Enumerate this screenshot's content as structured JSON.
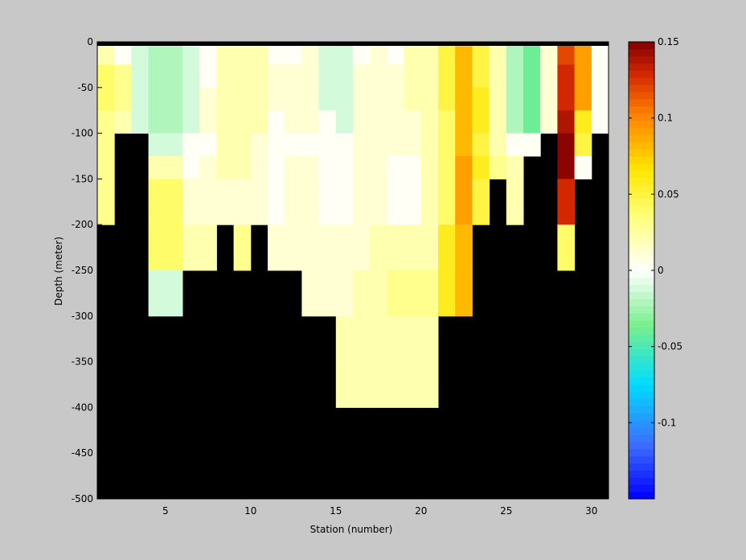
{
  "chart_data": {
    "type": "heatmap",
    "xlabel": "Station (number)",
    "ylabel": "Depth (meter)",
    "xlim": [
      1,
      31
    ],
    "ylim": [
      -500,
      0
    ],
    "xticks": [
      5,
      10,
      15,
      20,
      25,
      30
    ],
    "yticks": [
      0,
      -50,
      -100,
      -150,
      -200,
      -250,
      -300,
      -350,
      -400,
      -450,
      -500
    ],
    "bin_depths_top": [
      0,
      -5,
      -25,
      -50,
      -75,
      -100,
      -125,
      -150,
      -175,
      -200,
      -250,
      -300,
      -350,
      -400
    ],
    "bin_depths_bottom": [
      -5,
      -25,
      -50,
      -75,
      -100,
      -125,
      -150,
      -175,
      -200,
      -250,
      -300,
      -350,
      -400,
      -500
    ],
    "colorbar": {
      "range": [
        -0.15,
        0.15
      ],
      "ticks": [
        0.15,
        0.1,
        0.05,
        0,
        -0.05,
        -0.1
      ],
      "tick_labels": [
        "0.15",
        "0.1",
        "0.05",
        "0",
        "-0.05",
        "-0.1"
      ],
      "levels": 64
    },
    "background_value_color": "#000000",
    "surface_band_color": "#000000",
    "columns": [
      {
        "station": 1,
        "values": [
          0.04,
          0.02,
          0.04,
          0.04,
          0.03,
          0.03,
          0.03,
          0.03,
          0.03,
          null,
          null,
          null,
          null,
          null
        ]
      },
      {
        "station": 2,
        "values": [
          0.03,
          0.0,
          0.03,
          0.03,
          0.02,
          null,
          null,
          null,
          null,
          null,
          null,
          null,
          null,
          null
        ]
      },
      {
        "station": 3,
        "values": [
          -0.01,
          -0.01,
          -0.01,
          -0.01,
          -0.01,
          null,
          null,
          null,
          null,
          null,
          null,
          null,
          null,
          null
        ]
      },
      {
        "station": 4,
        "values": [
          -0.01,
          -0.02,
          -0.02,
          -0.02,
          -0.02,
          -0.01,
          0.02,
          0.04,
          0.04,
          0.04,
          -0.01,
          null,
          null,
          null
        ]
      },
      {
        "station": 5,
        "values": [
          -0.01,
          -0.02,
          -0.02,
          -0.02,
          -0.02,
          -0.01,
          0.02,
          0.04,
          0.04,
          0.04,
          -0.01,
          null,
          null,
          null
        ]
      },
      {
        "station": 6,
        "values": [
          0.0,
          -0.01,
          -0.01,
          -0.01,
          -0.01,
          0.0,
          0.0,
          0.01,
          0.01,
          0.02,
          null,
          null,
          null,
          null
        ]
      },
      {
        "station": 7,
        "values": [
          0.01,
          0.0,
          0.0,
          0.01,
          0.01,
          0.0,
          0.01,
          0.01,
          0.01,
          0.02,
          null,
          null,
          null,
          null
        ]
      },
      {
        "station": 8,
        "values": [
          0.02,
          0.02,
          0.02,
          0.02,
          0.02,
          0.02,
          0.02,
          0.01,
          0.01,
          null,
          null,
          null,
          null,
          null
        ]
      },
      {
        "station": 9,
        "values": [
          0.02,
          0.02,
          0.02,
          0.02,
          0.02,
          0.02,
          0.02,
          0.01,
          0.01,
          0.03,
          null,
          null,
          null,
          null
        ]
      },
      {
        "station": 10,
        "values": [
          0.02,
          0.02,
          0.02,
          0.02,
          0.02,
          0.01,
          0.01,
          0.01,
          0.01,
          null,
          null,
          null,
          null,
          null
        ]
      },
      {
        "station": 11,
        "values": [
          0.0,
          0.0,
          0.01,
          0.01,
          0.0,
          0.0,
          0.0,
          0.0,
          0.0,
          0.01,
          null,
          null,
          null,
          null
        ]
      },
      {
        "station": 12,
        "values": [
          0.0,
          0.0,
          0.01,
          0.01,
          0.01,
          0.0,
          0.01,
          0.01,
          0.01,
          0.01,
          null,
          null,
          null,
          null
        ]
      },
      {
        "station": 13,
        "values": [
          -0.01,
          0.01,
          0.01,
          0.01,
          0.01,
          0.0,
          0.01,
          0.01,
          0.01,
          0.01,
          0.01,
          null,
          null,
          null
        ]
      },
      {
        "station": 14,
        "values": [
          -0.01,
          -0.01,
          -0.01,
          -0.01,
          0.0,
          0.0,
          0.0,
          0.0,
          0.0,
          0.01,
          0.01,
          null,
          null,
          null
        ]
      },
      {
        "station": 15,
        "values": [
          -0.02,
          -0.01,
          -0.01,
          -0.01,
          -0.01,
          0.0,
          0.0,
          0.0,
          0.0,
          0.01,
          0.01,
          0.02,
          0.02,
          null
        ]
      },
      {
        "station": 16,
        "values": [
          -0.01,
          0.0,
          0.01,
          0.01,
          0.01,
          0.01,
          0.01,
          0.01,
          0.01,
          0.01,
          0.02,
          0.02,
          0.02,
          null
        ]
      },
      {
        "station": 17,
        "values": [
          0.0,
          0.01,
          0.01,
          0.01,
          0.01,
          0.01,
          0.01,
          0.01,
          0.01,
          0.02,
          0.02,
          0.02,
          0.02,
          null
        ]
      },
      {
        "station": 18,
        "values": [
          0.0,
          0.0,
          0.01,
          0.01,
          0.01,
          0.01,
          0.0,
          0.0,
          0.0,
          0.02,
          0.03,
          0.02,
          0.02,
          null
        ]
      },
      {
        "station": 19,
        "values": [
          0.01,
          0.02,
          0.02,
          0.02,
          0.01,
          0.01,
          0.0,
          0.0,
          0.0,
          0.02,
          0.03,
          0.02,
          0.02,
          null
        ]
      },
      {
        "station": 20,
        "values": [
          0.02,
          0.02,
          0.02,
          0.02,
          0.02,
          0.02,
          0.02,
          0.02,
          0.02,
          0.02,
          0.03,
          0.02,
          0.02,
          null
        ]
      },
      {
        "station": 21,
        "values": [
          0.05,
          0.05,
          0.05,
          0.05,
          0.04,
          0.04,
          0.04,
          0.04,
          0.04,
          0.06,
          0.06,
          null,
          null,
          null
        ]
      },
      {
        "station": 22,
        "values": [
          0.07,
          0.08,
          0.08,
          0.08,
          0.08,
          0.08,
          0.09,
          0.09,
          0.09,
          0.08,
          0.08,
          null,
          null,
          null
        ]
      },
      {
        "station": 23,
        "values": [
          0.05,
          0.05,
          0.05,
          0.06,
          0.06,
          0.05,
          0.06,
          0.05,
          0.05,
          null,
          null,
          null,
          null,
          null
        ]
      },
      {
        "station": 24,
        "values": [
          0.01,
          0.02,
          0.02,
          0.02,
          0.02,
          0.02,
          0.03,
          null,
          null,
          null,
          null,
          null,
          null,
          null
        ]
      },
      {
        "station": 25,
        "values": [
          -0.02,
          -0.02,
          -0.02,
          -0.02,
          -0.02,
          0.0,
          0.02,
          0.02,
          0.02,
          null,
          null,
          null,
          null,
          null
        ]
      },
      {
        "station": 26,
        "values": [
          -0.03,
          -0.04,
          -0.04,
          -0.04,
          -0.04,
          0.0,
          null,
          null,
          null,
          null,
          null,
          null,
          null,
          null
        ]
      },
      {
        "station": 27,
        "values": [
          0.01,
          0.01,
          0.01,
          0.01,
          0.01,
          null,
          null,
          null,
          null,
          null,
          null,
          null,
          null,
          null
        ]
      },
      {
        "station": 28,
        "values": [
          0.12,
          0.12,
          0.13,
          0.13,
          0.14,
          0.15,
          0.15,
          0.13,
          0.13,
          0.04,
          null,
          null,
          null,
          null
        ]
      },
      {
        "station": 29,
        "values": [
          0.09,
          0.09,
          0.09,
          0.09,
          0.06,
          0.05,
          0.0,
          null,
          null,
          null,
          null,
          null,
          null,
          null
        ]
      },
      {
        "station": 30,
        "values": [
          0.0,
          0.0,
          0.0,
          0.0,
          0.0,
          null,
          null,
          null,
          null,
          null,
          null,
          null,
          null,
          null
        ]
      }
    ]
  }
}
